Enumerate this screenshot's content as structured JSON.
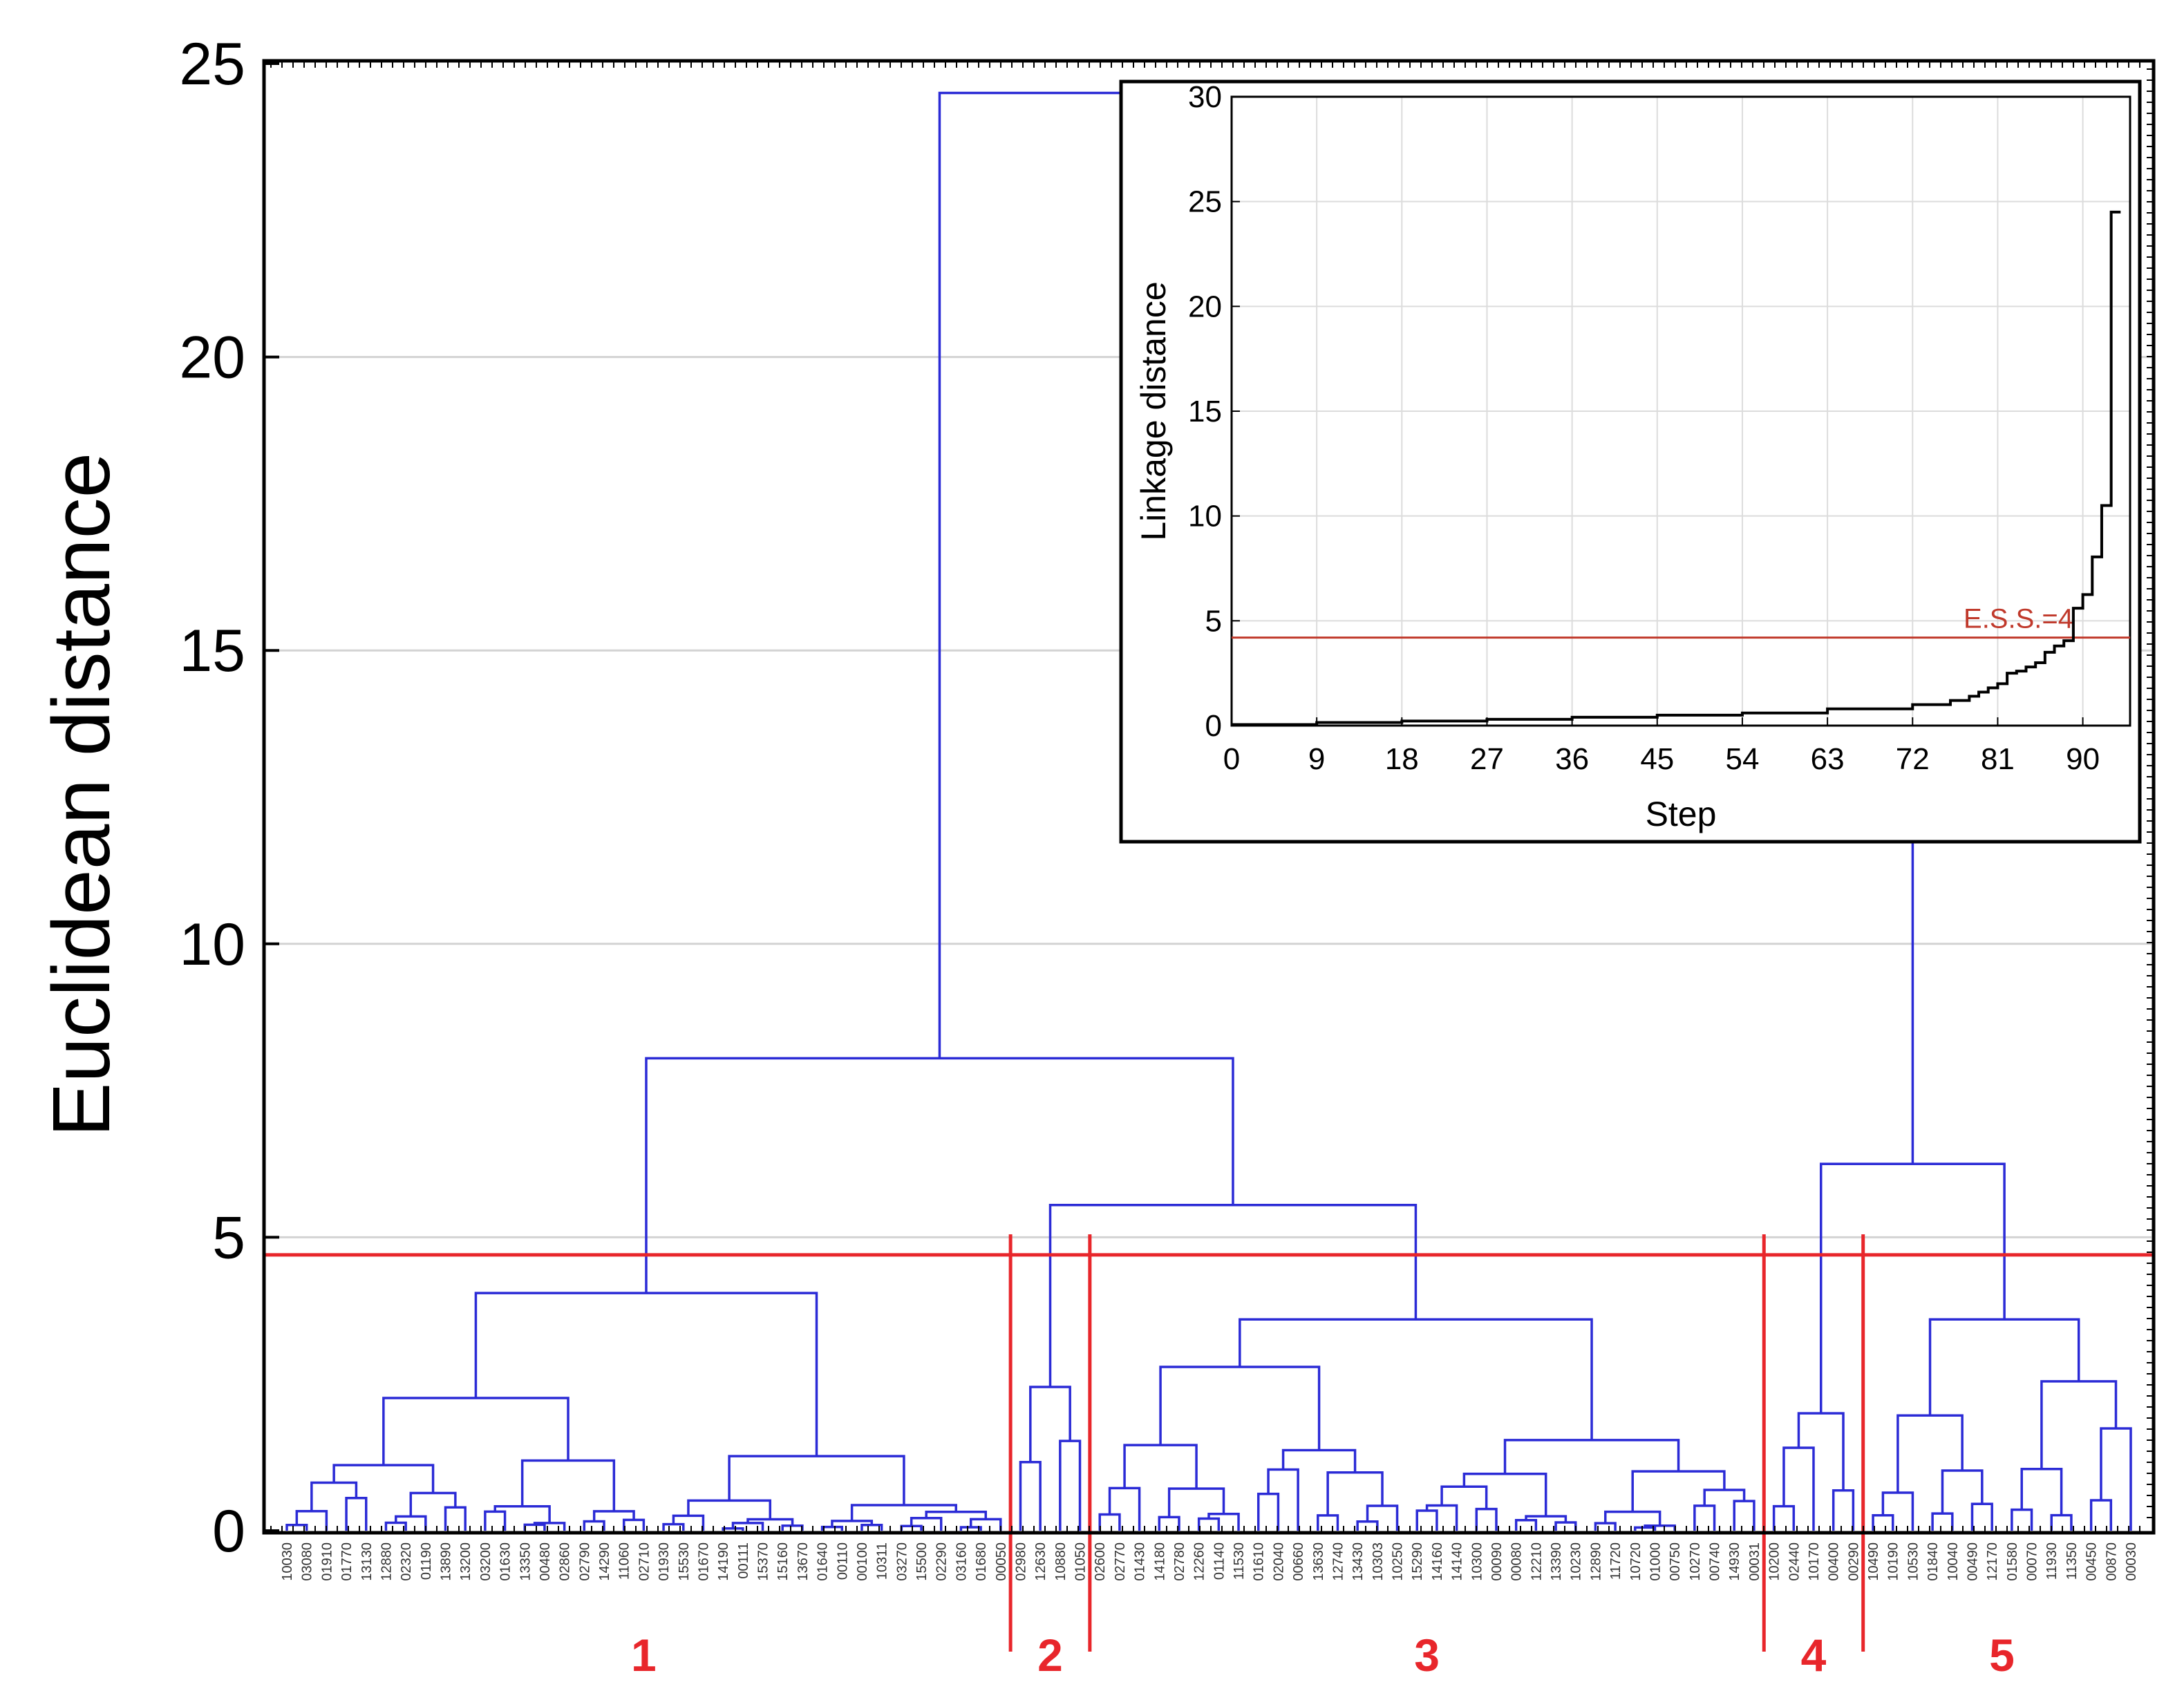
{
  "chart_data": [
    {
      "type": "dendrogram",
      "ylabel": "Euclidean distance",
      "ylim": [
        0,
        25
      ],
      "yticks": [
        "0",
        "5",
        "10",
        "15",
        "20",
        "25"
      ],
      "grid": true,
      "cut_height": 4.7,
      "leaves": [
        "10030",
        "03080",
        "01910",
        "01770",
        "13130",
        "12880",
        "02320",
        "01190",
        "13890",
        "13200",
        "03200",
        "01630",
        "13350",
        "00480",
        "02860",
        "02790",
        "14290",
        "11060",
        "02710",
        "01930",
        "15530",
        "01670",
        "14190",
        "00111",
        "15370",
        "15160",
        "13670",
        "01640",
        "00110",
        "00100",
        "10311",
        "03270",
        "15500",
        "02290",
        "03160",
        "01680",
        "00050",
        "02980",
        "12630",
        "10880",
        "01050",
        "02600",
        "02770",
        "01430",
        "14180",
        "02780",
        "12260",
        "01140",
        "11530",
        "01610",
        "02040",
        "00660",
        "13630",
        "12740",
        "13430",
        "10303",
        "10250",
        "15290",
        "14160",
        "14140",
        "10300",
        "00090",
        "00080",
        "12210",
        "13390",
        "10230",
        "12890",
        "11720",
        "10720",
        "01000",
        "00750",
        "10270",
        "00740",
        "14930",
        "00031",
        "10200",
        "02440",
        "10170",
        "00400",
        "00290",
        "10490",
        "10190",
        "10530",
        "01840",
        "10040",
        "00490",
        "12170",
        "01580",
        "00070",
        "11930",
        "11350",
        "00450",
        "00870",
        "00030"
      ],
      "clusters": [
        {
          "label": "1",
          "start": 0,
          "end": 36
        },
        {
          "label": "2",
          "start": 37,
          "end": 40
        },
        {
          "label": "3",
          "start": 41,
          "end": 74
        },
        {
          "label": "4",
          "start": 75,
          "end": 79
        },
        {
          "label": "5",
          "start": 80,
          "end": 93
        }
      ],
      "merges": [
        {
          "a": 0,
          "b": 36,
          "height": 4.05
        },
        {
          "a": 37,
          "b": 40,
          "height": 2.45
        },
        {
          "a": 41,
          "b": 74,
          "height": 3.6
        },
        {
          "a": 37,
          "b": 74,
          "height": 5.55
        },
        {
          "a": 0,
          "b": 74,
          "height": 8.05
        },
        {
          "a": 75,
          "b": 79,
          "height": 2.0
        },
        {
          "a": 80,
          "b": 93,
          "height": 3.6
        },
        {
          "a": 75,
          "b": 93,
          "height": 6.25
        },
        {
          "a": 0,
          "b": 93,
          "height": 24.5
        }
      ]
    },
    {
      "type": "line",
      "inset": true,
      "xlabel": "Step",
      "ylabel": "Linkage distance",
      "xlim": [
        0,
        95
      ],
      "ylim": [
        0,
        30
      ],
      "xticks": [
        "0",
        "9",
        "18",
        "27",
        "36",
        "45",
        "54",
        "63",
        "72",
        "81",
        "90"
      ],
      "yticks": [
        "0",
        "5",
        "10",
        "15",
        "20",
        "25",
        "30"
      ],
      "threshold": {
        "value": 4.2,
        "label": "E.S.S.=4"
      },
      "series": [
        {
          "name": "Linkage distance",
          "x": [
            0,
            9,
            18,
            27,
            36,
            45,
            54,
            63,
            72,
            76,
            78,
            79,
            80,
            81,
            82,
            83,
            84,
            85,
            86,
            87,
            88,
            89,
            90,
            91,
            92,
            93,
            94
          ],
          "y": [
            0.05,
            0.15,
            0.22,
            0.3,
            0.4,
            0.5,
            0.6,
            0.8,
            1.0,
            1.2,
            1.4,
            1.6,
            1.8,
            2.0,
            2.5,
            2.6,
            2.8,
            3.0,
            3.5,
            3.8,
            4.05,
            5.6,
            6.25,
            8.05,
            10.5,
            24.5,
            24.5
          ]
        }
      ]
    }
  ],
  "colors": {
    "tree": "#2b2bd6",
    "cut": "#e8262b",
    "grid": "#d3d3d3"
  }
}
